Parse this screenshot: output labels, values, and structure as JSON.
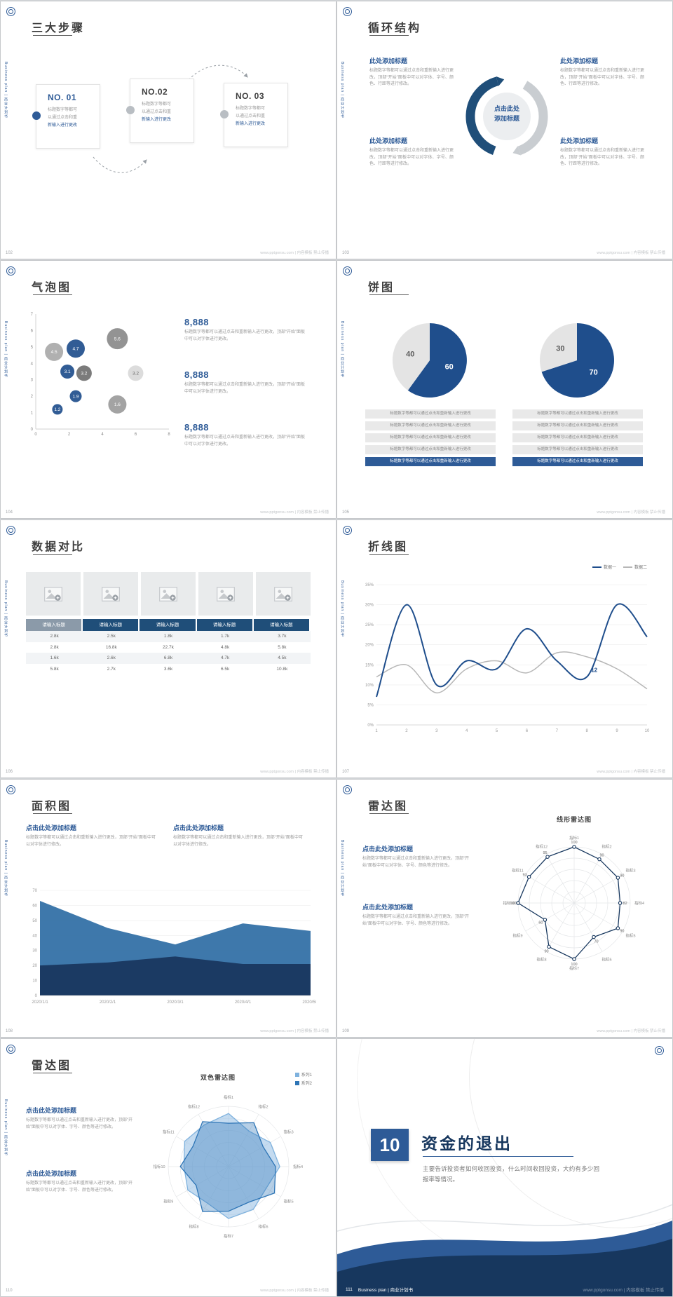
{
  "common": {
    "brand_vertical": "Business plan | 商业计划书",
    "watermark": "www.pptgonsu.com | 内容模板 禁止传播",
    "accent": "#2e5b97",
    "dark_accent": "#17375e"
  },
  "slides": {
    "s102": {
      "page": "102",
      "title": "三大步骤",
      "steps": [
        {
          "no": "NO. 01",
          "lines": [
            "标题数字等都可",
            "以通过点击和重",
            "新输入进行更改"
          ]
        },
        {
          "no": "NO.02",
          "lines": [
            "标题数字等都可",
            "以通过点击和重",
            "新输入进行更改"
          ]
        },
        {
          "no": "NO. 03",
          "lines": [
            "标题数字等都可",
            "以通过点击和重",
            "新输入进行更改"
          ]
        }
      ]
    },
    "s103": {
      "page": "103",
      "title": "循环结构",
      "center_label": "点击此处添加标题",
      "blocks": [
        {
          "title": "此处添加标题",
          "text": "标题数字等都可以通过点击和重新输入进行更改，顶部“开始”面板中可以对字体、字号、颜色、行距等进行修改。"
        },
        {
          "title": "此处添加标题",
          "text": "标题数字等都可以通过点击和重新输入进行更改，顶部“开始”面板中可以对字体、字号、颜色、行距等进行修改。"
        },
        {
          "title": "此处添加标题",
          "text": "标题数字等都可以通过点击和重新输入进行更改，顶部“开始”面板中可以对字体、字号、颜色、行距等进行修改。"
        },
        {
          "title": "此处添加标题",
          "text": "标题数字等都可以通过点击和重新输入进行更改，顶部“开始”面板中可以对字体、字号、颜色、行距等进行修改。"
        }
      ]
    },
    "s104": {
      "page": "104",
      "title": "气泡图",
      "items": [
        {
          "number": "8,888",
          "text": "标题数字等都可以通过点击和重新输入进行更改，顶部“开始”面板中可以对字体进行更改。"
        },
        {
          "number": "8,888",
          "text": "标题数字等都可以通过点击和重新输入进行更改，顶部“开始”面板中可以对字体进行更改。"
        },
        {
          "number": "8,888",
          "text": "标题数字等都可以通过点击和重新输入进行更改，顶部“开始”面板中可以对字体进行更改。"
        }
      ]
    },
    "s105": {
      "page": "105",
      "title": "饼图",
      "left_rows": [
        "标题数字等都可以通过点击和重新输入进行更改",
        "标题数字等都可以通过点击和重新输入进行更改",
        "标题数字等都可以通过点击和重新输入进行更改",
        "标题数字等都可以通过点击和重新输入进行更改",
        "标题数字等都可以通过点击和重新输入进行更改"
      ],
      "right_rows": [
        "标题数字等都可以通过点击和重新输入进行更改",
        "标题数字等都可以通过点击和重新输入进行更改",
        "标题数字等都可以通过点击和重新输入进行更改",
        "标题数字等都可以通过点击和重新输入进行更改",
        "标题数字等都可以通过点击和重新输入进行更改"
      ]
    },
    "s106": {
      "page": "106",
      "title": "数据对比",
      "table": {
        "headers": [
          "请输入标题",
          "请输入标题",
          "请输入标题",
          "请输入标题",
          "请输入标题"
        ],
        "rows": [
          [
            "2.8k",
            "2.5k",
            "1.8k",
            "1.7k",
            "3.7k"
          ],
          [
            "2.8k",
            "16.8k",
            "22.7k",
            "4.8k",
            "5.8k"
          ],
          [
            "1.6k",
            "2.6k",
            "6.8k",
            "4.7k",
            "4.5k"
          ],
          [
            "5.8k",
            "2.7k",
            "3.6k",
            "6.5k",
            "10.8k"
          ]
        ]
      }
    },
    "s107": {
      "page": "107",
      "title": "折线图"
    },
    "s108": {
      "page": "108",
      "title": "面积图",
      "blocks": [
        {
          "title": "点击此处添加标题",
          "text": "标题数字等都可以通过点击和重新输入进行更改，顶部“开始”面板中可以对字体进行修改。"
        },
        {
          "title": "点击此处添加标题",
          "text": "标题数字等都可以通过点击和重新输入进行更改，顶部“开始”面板中可以对字体进行修改。"
        }
      ]
    },
    "s109": {
      "page": "109",
      "title": "雷达图",
      "blocks": [
        {
          "title": "点击此处添加标题",
          "text": "标题数字等都可以通过点击和重新输入进行更改，顶部“开始”面板中可以对字体、字号、颜色等进行修改。"
        },
        {
          "title": "点击此处添加标题",
          "text": "标题数字等都可以通过点击和重新输入进行更改，顶部“开始”面板中可以对字体、字号、颜色等进行修改。"
        }
      ]
    },
    "s110": {
      "page": "110",
      "title": "雷达图",
      "blocks": [
        {
          "title": "点击此处添加标题",
          "text": "标题数字等都可以通过点击和重新输入进行更改，顶部“开始”面板中可以对字体、字号、颜色等进行修改。"
        },
        {
          "title": "点击此处添加标题",
          "text": "标题数字等都可以通过点击和重新输入进行更改，顶部“开始”面板中可以对字体、字号、颜色等进行修改。"
        }
      ]
    },
    "s111": {
      "page": "111",
      "number": "10",
      "title": "资金的退出",
      "body": "主要告诉投资者如何收回投资，什么时间收回投资，大约有多少回报率等情况。",
      "footer_brand": "Business plan | 商业计划书"
    }
  },
  "chart_data": {
    "bubble": {
      "type": "scatter",
      "xlim": [
        0,
        8
      ],
      "ylim": [
        0,
        7
      ],
      "xticks": [
        0,
        2,
        4,
        6,
        8
      ],
      "yticks": [
        0,
        1,
        2,
        3,
        4,
        5,
        6,
        7
      ],
      "points": [
        {
          "x": 1.1,
          "y": 4.7,
          "label": "4.5",
          "r": 13,
          "color": "#a9a9a9",
          "text_color": "#ffffff"
        },
        {
          "x": 2.4,
          "y": 4.9,
          "label": "4.7",
          "r": 13,
          "color": "#1f4e8c",
          "text_color": "#ffffff"
        },
        {
          "x": 4.9,
          "y": 5.5,
          "label": "5.6",
          "r": 15,
          "color": "#8a8a8a",
          "text_color": "#ffffff"
        },
        {
          "x": 1.9,
          "y": 3.5,
          "label": "3.1",
          "r": 10,
          "color": "#1f4e8c",
          "text_color": "#ffffff"
        },
        {
          "x": 2.9,
          "y": 3.4,
          "label": "3.2",
          "r": 11,
          "color": "#707070",
          "text_color": "#ffffff"
        },
        {
          "x": 6.0,
          "y": 3.4,
          "label": "3.2",
          "r": 11,
          "color": "#d9d9d9",
          "text_color": "#666666"
        },
        {
          "x": 2.4,
          "y": 2.0,
          "label": "1.9",
          "r": 8.5,
          "color": "#1f4e8c",
          "text_color": "#ffffff"
        },
        {
          "x": 1.3,
          "y": 1.2,
          "label": "1.2",
          "r": 7.5,
          "color": "#1f4e8c",
          "text_color": "#ffffff"
        },
        {
          "x": 4.9,
          "y": 1.5,
          "label": "1.6",
          "r": 13,
          "color": "#9b9b9b",
          "text_color": "#ffffff"
        }
      ]
    },
    "pies": [
      {
        "type": "pie",
        "values": [
          {
            "label": "60",
            "value": 60,
            "color": "#1f4e8c",
            "text_color": "#ffffff"
          },
          {
            "label": "40",
            "value": 40,
            "color": "#e4e4e4",
            "text_color": "#595959"
          }
        ]
      },
      {
        "type": "pie",
        "values": [
          {
            "label": "70",
            "value": 70,
            "color": "#1f4e8c",
            "text_color": "#ffffff"
          },
          {
            "label": "30",
            "value": 30,
            "color": "#e4e4e4",
            "text_color": "#595959"
          }
        ]
      }
    ],
    "line": {
      "type": "line",
      "x": [
        1,
        2,
        3,
        4,
        5,
        6,
        7,
        8,
        9,
        10
      ],
      "ymin": 0,
      "ymax": 35,
      "ystep": 5,
      "ytick_suffix": "%",
      "series": [
        {
          "name": "数据一",
          "color": "#1f4e8c",
          "width": 2,
          "values": [
            7,
            30,
            10,
            16,
            14,
            24,
            16,
            12,
            30,
            22
          ]
        },
        {
          "name": "数据二",
          "color": "#b7b7b7",
          "width": 1.5,
          "values": [
            12,
            15,
            8,
            14,
            16,
            13,
            18,
            17,
            14,
            9
          ]
        }
      ],
      "annotation": {
        "series": 0,
        "index": 7,
        "text": "12"
      }
    },
    "area": {
      "type": "area",
      "categories": [
        "2020/1/1",
        "2020/2/1",
        "2020/3/1",
        "2020/4/1",
        "2020/5/1"
      ],
      "ymin": 0,
      "ymax": 70,
      "ystep": 10,
      "series": [
        {
          "color": "#2e6da4",
          "opacity": 0.92,
          "values": [
            63,
            45,
            34,
            48,
            43
          ]
        },
        {
          "color": "#1b3a63",
          "opacity": 1,
          "values": [
            20,
            22,
            26,
            21,
            21
          ]
        }
      ]
    },
    "radar_line": {
      "type": "radar",
      "title": "线形雷达图",
      "max": 100,
      "rings": 5,
      "labels": [
        "指标1",
        "指标2",
        "指标3",
        "指标4",
        "指标5",
        "指标6",
        "指标7",
        "指标8",
        "指标9",
        "指标10",
        "指标11",
        "指标12"
      ],
      "series": [
        {
          "color": "#17375e",
          "fill": "none",
          "markers": true,
          "show_values": true,
          "values": [
            100,
            90,
            90,
            82,
            90,
            70,
            100,
            90,
            60,
            100,
            93,
            95
          ]
        }
      ]
    },
    "radar_dual": {
      "type": "radar",
      "title": "双色雷达图",
      "max": 100,
      "rings": 5,
      "labels": [
        "指标1",
        "指标2",
        "指标3",
        "指标4",
        "指标5",
        "指标6",
        "指标7",
        "指标8",
        "指标9",
        "指标10",
        "指标11",
        "指标12"
      ],
      "series": [
        {
          "name": "系列1",
          "color": "#7fb2de",
          "fill": "rgba(157,195,230,0.6)",
          "values": [
            88,
            68,
            80,
            85,
            72,
            82,
            86,
            70,
            78,
            74,
            84,
            80
          ]
        },
        {
          "name": "系列2",
          "color": "#2e75b6",
          "fill": "rgba(46,117,182,0.35)",
          "values": [
            72,
            84,
            66,
            78,
            88,
            68,
            74,
            86,
            62,
            80,
            68,
            86
          ]
        }
      ]
    }
  }
}
